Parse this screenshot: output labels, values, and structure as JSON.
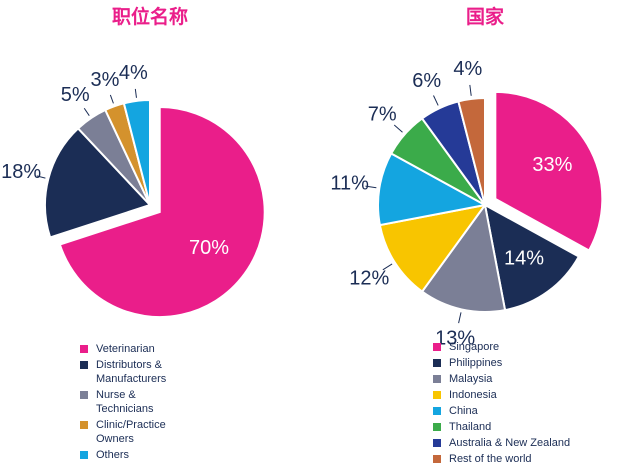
{
  "chart_data": [
    {
      "type": "pie",
      "title": "职位名称",
      "categories": [
        "Veterinarian",
        "Distributors & Manufacturers",
        "Nurse & Technicians",
        "Clinic/Practice Owners",
        "Others"
      ],
      "values": [
        70,
        18,
        5,
        3,
        4
      ],
      "labels": [
        "70%",
        "18%",
        "5%",
        "3%",
        "4%"
      ],
      "colors": [
        "#ea1e8a",
        "#1b2d55",
        "#7b7f96",
        "#d4922d",
        "#14a5e0"
      ],
      "exploded": "Veterinarian",
      "legend": "bottom"
    },
    {
      "type": "pie",
      "title": "国家",
      "categories": [
        "Singapore",
        "Philippines",
        "Malaysia",
        "Indonesia",
        "China",
        "Thailand",
        "Australia & New Zealand",
        "Rest of the world"
      ],
      "values": [
        33,
        14,
        13,
        12,
        11,
        7,
        6,
        4
      ],
      "labels": [
        "33%",
        "14%",
        "13%",
        "12%",
        "11%",
        "7%",
        "6%",
        "4%"
      ],
      "colors": [
        "#ea1e8a",
        "#1b2d55",
        "#7b7f96",
        "#f8c500",
        "#14a5e0",
        "#3bab4a",
        "#253a97",
        "#c4683b"
      ],
      "exploded": "Singapore",
      "legend": "bottom"
    }
  ]
}
